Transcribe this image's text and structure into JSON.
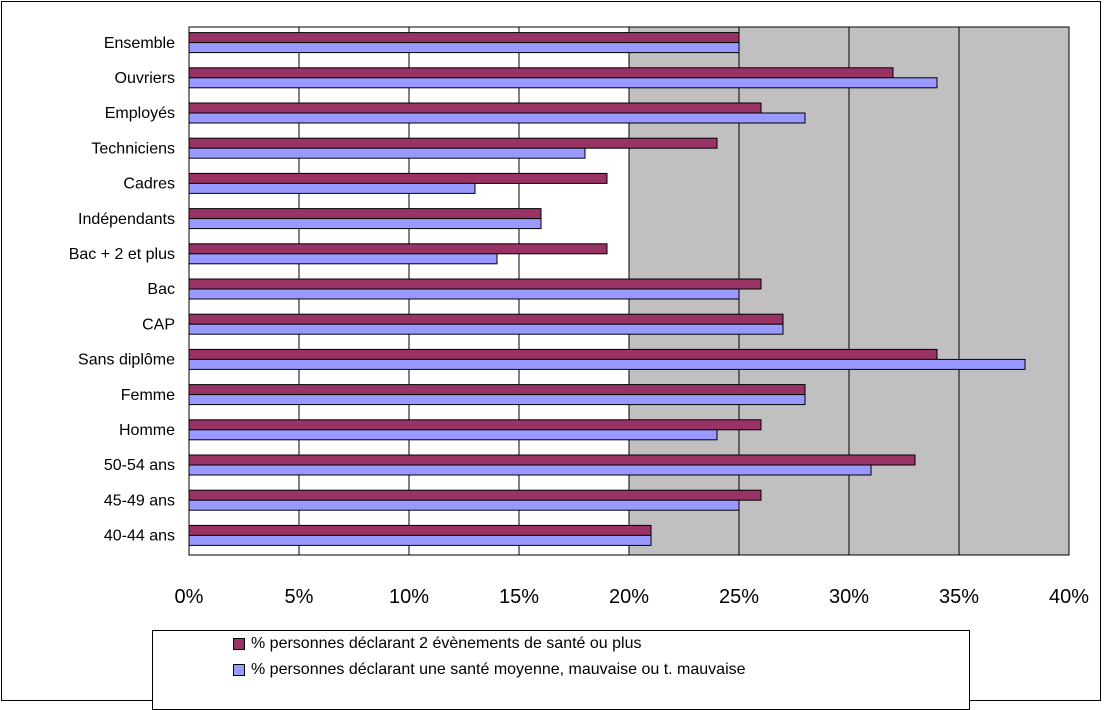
{
  "chart_data": {
    "type": "bar",
    "orientation": "horizontal",
    "categories": [
      "Ensemble",
      "Ouvriers",
      "Employés",
      "Techniciens",
      "Cadres",
      "Indépendants",
      "Bac + 2 et plus",
      "Bac",
      "CAP",
      "Sans diplôme",
      "Femme",
      "Homme",
      "50-54 ans",
      "45-49 ans",
      "40-44 ans"
    ],
    "series": [
      {
        "name": "% personnes déclarant 2 évènements de santé ou plus",
        "color": "#993366",
        "values": [
          25,
          32,
          26,
          24,
          19,
          16,
          19,
          26,
          27,
          34,
          28,
          26,
          33,
          26,
          21
        ]
      },
      {
        "name": "% personnes déclarant une santé moyenne, mauvaise ou t. mauvaise",
        "color": "#9999FF",
        "values": [
          25,
          34,
          28,
          18,
          13,
          16,
          14,
          25,
          27,
          38,
          28,
          24,
          31,
          25,
          21
        ]
      }
    ],
    "xlim": [
      0,
      40
    ],
    "x_ticks": [
      0,
      5,
      10,
      15,
      20,
      25,
      30,
      35,
      40
    ],
    "x_tick_labels": [
      "0%",
      "5%",
      "10%",
      "15%",
      "20%",
      "25%",
      "30%",
      "35%",
      "40%"
    ],
    "grid": "vertical",
    "plot_background": "#C0C0C0",
    "legend_position": "bottom"
  }
}
